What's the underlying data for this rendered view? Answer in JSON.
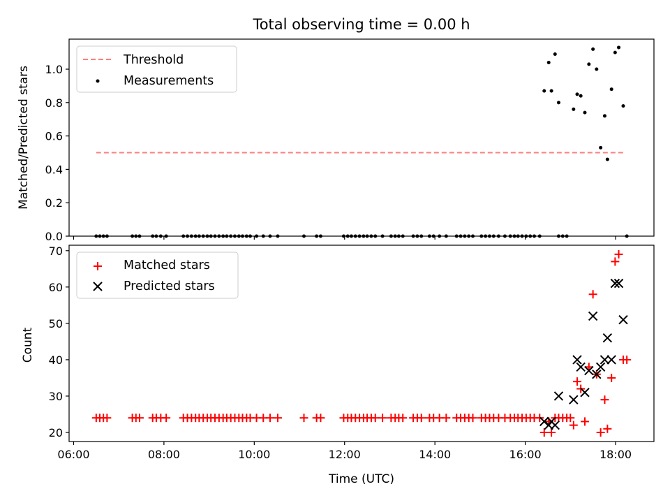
{
  "chart_data": {
    "type": "scatter",
    "title": "Total observing time = 0.00 h",
    "xlabel": "Time (UTC)",
    "x_tick_labels": [
      "06:00",
      "08:00",
      "10:00",
      "12:00",
      "14:00",
      "16:00",
      "18:00"
    ],
    "x_tick_hours": [
      6,
      8,
      10,
      12,
      14,
      16,
      18
    ],
    "xlim_hours": [
      5.9,
      18.85
    ],
    "panels": [
      {
        "id": "ratio",
        "ylabel": "Matched/Predicted stars",
        "ylim": [
          0,
          1.18
        ],
        "y_ticks": [
          0.0,
          0.2,
          0.4,
          0.6,
          0.8,
          1.0
        ],
        "y_tick_labels": [
          "0.0",
          "0.2",
          "0.4",
          "0.6",
          "0.8",
          "1.0"
        ],
        "legend": [
          "Threshold",
          "Measurements"
        ],
        "threshold": {
          "name": "Threshold",
          "value": 0.5,
          "x_range_hours": [
            6.5,
            18.2
          ],
          "color": "#ff7f7f"
        },
        "measurements": {
          "name": "Measurements",
          "color": "#000000",
          "zero_x_hours": [
            6.5,
            6.58,
            6.66,
            6.74,
            7.3,
            7.38,
            7.46,
            7.75,
            7.83,
            7.93,
            8.05,
            8.43,
            8.52,
            8.61,
            8.7,
            8.78,
            8.87,
            8.96,
            9.04,
            9.13,
            9.22,
            9.31,
            9.39,
            9.48,
            9.57,
            9.66,
            9.74,
            9.83,
            9.91,
            10.05,
            10.2,
            10.35,
            10.52,
            11.1,
            11.38,
            11.47,
            11.98,
            12.07,
            12.15,
            12.24,
            12.33,
            12.42,
            12.5,
            12.59,
            12.68,
            12.84,
            13.03,
            13.12,
            13.2,
            13.29,
            13.52,
            13.61,
            13.7,
            13.88,
            13.97,
            14.1,
            14.25,
            14.48,
            14.57,
            14.66,
            14.75,
            14.84,
            15.03,
            15.12,
            15.21,
            15.3,
            15.41,
            15.55,
            15.67,
            15.76,
            15.84,
            15.93,
            16.02,
            16.11,
            16.2,
            16.32,
            16.74,
            16.83,
            16.92,
            18.25
          ],
          "points": [
            {
              "x": 16.42,
              "y": 0.87
            },
            {
              "x": 16.52,
              "y": 1.04
            },
            {
              "x": 16.58,
              "y": 0.87
            },
            {
              "x": 16.66,
              "y": 1.09
            },
            {
              "x": 16.74,
              "y": 0.8
            },
            {
              "x": 17.07,
              "y": 0.76
            },
            {
              "x": 17.15,
              "y": 0.85
            },
            {
              "x": 17.23,
              "y": 0.84
            },
            {
              "x": 17.32,
              "y": 0.74
            },
            {
              "x": 17.41,
              "y": 1.03
            },
            {
              "x": 17.5,
              "y": 1.12
            },
            {
              "x": 17.58,
              "y": 1.0
            },
            {
              "x": 17.67,
              "y": 0.53
            },
            {
              "x": 17.76,
              "y": 0.72
            },
            {
              "x": 17.82,
              "y": 0.46
            },
            {
              "x": 17.91,
              "y": 0.88
            },
            {
              "x": 17.99,
              "y": 1.1
            },
            {
              "x": 18.07,
              "y": 1.13
            },
            {
              "x": 18.17,
              "y": 0.78
            }
          ]
        }
      },
      {
        "id": "counts",
        "ylabel": "Count",
        "ylim": [
          17.5,
          71.5
        ],
        "y_ticks": [
          20,
          30,
          40,
          50,
          60,
          70
        ],
        "y_tick_labels": [
          "20",
          "30",
          "40",
          "50",
          "60",
          "70"
        ],
        "legend": [
          "Matched stars",
          "Predicted stars"
        ],
        "matched": {
          "name": "Matched stars",
          "color": "#ff0000",
          "flat_value": 24,
          "flat_x_hours": [
            6.5,
            6.58,
            6.66,
            6.74,
            7.3,
            7.38,
            7.46,
            7.75,
            7.83,
            7.93,
            8.05,
            8.43,
            8.52,
            8.61,
            8.7,
            8.78,
            8.87,
            8.96,
            9.04,
            9.13,
            9.22,
            9.31,
            9.39,
            9.48,
            9.57,
            9.66,
            9.74,
            9.83,
            9.91,
            10.05,
            10.2,
            10.35,
            10.52,
            11.1,
            11.38,
            11.47,
            11.98,
            12.07,
            12.15,
            12.24,
            12.33,
            12.42,
            12.5,
            12.59,
            12.68,
            12.84,
            13.03,
            13.12,
            13.2,
            13.29,
            13.52,
            13.61,
            13.7,
            13.88,
            13.97,
            14.1,
            14.25,
            14.48,
            14.57,
            14.66,
            14.75,
            14.84,
            15.03,
            15.12,
            15.21,
            15.3,
            15.41,
            15.55,
            15.67,
            15.76,
            15.84,
            15.93,
            16.02,
            16.11,
            16.2,
            16.32
          ],
          "points": [
            {
              "x": 16.42,
              "y": 20
            },
            {
              "x": 16.52,
              "y": 23
            },
            {
              "x": 16.58,
              "y": 20
            },
            {
              "x": 16.66,
              "y": 24
            },
            {
              "x": 16.74,
              "y": 24
            },
            {
              "x": 16.83,
              "y": 24
            },
            {
              "x": 16.92,
              "y": 24
            },
            {
              "x": 17.0,
              "y": 24
            },
            {
              "x": 17.07,
              "y": 22
            },
            {
              "x": 17.15,
              "y": 34
            },
            {
              "x": 17.23,
              "y": 32
            },
            {
              "x": 17.32,
              "y": 23
            },
            {
              "x": 17.41,
              "y": 38
            },
            {
              "x": 17.5,
              "y": 58
            },
            {
              "x": 17.58,
              "y": 36
            },
            {
              "x": 17.67,
              "y": 20
            },
            {
              "x": 17.76,
              "y": 29
            },
            {
              "x": 17.82,
              "y": 21
            },
            {
              "x": 17.91,
              "y": 35
            },
            {
              "x": 17.99,
              "y": 67
            },
            {
              "x": 18.07,
              "y": 69
            },
            {
              "x": 18.17,
              "y": 40
            },
            {
              "x": 18.25,
              "y": 40
            }
          ]
        },
        "predicted": {
          "name": "Predicted stars",
          "color": "#000000",
          "points": [
            {
              "x": 16.42,
              "y": 23
            },
            {
              "x": 16.52,
              "y": 22
            },
            {
              "x": 16.58,
              "y": 23
            },
            {
              "x": 16.66,
              "y": 22
            },
            {
              "x": 16.74,
              "y": 30
            },
            {
              "x": 17.07,
              "y": 29
            },
            {
              "x": 17.15,
              "y": 40
            },
            {
              "x": 17.23,
              "y": 38
            },
            {
              "x": 17.32,
              "y": 31
            },
            {
              "x": 17.41,
              "y": 37
            },
            {
              "x": 17.5,
              "y": 52
            },
            {
              "x": 17.58,
              "y": 36
            },
            {
              "x": 17.67,
              "y": 38
            },
            {
              "x": 17.76,
              "y": 40
            },
            {
              "x": 17.82,
              "y": 46
            },
            {
              "x": 17.91,
              "y": 40
            },
            {
              "x": 17.99,
              "y": 61
            },
            {
              "x": 18.07,
              "y": 61
            },
            {
              "x": 18.17,
              "y": 51
            }
          ]
        }
      }
    ]
  }
}
